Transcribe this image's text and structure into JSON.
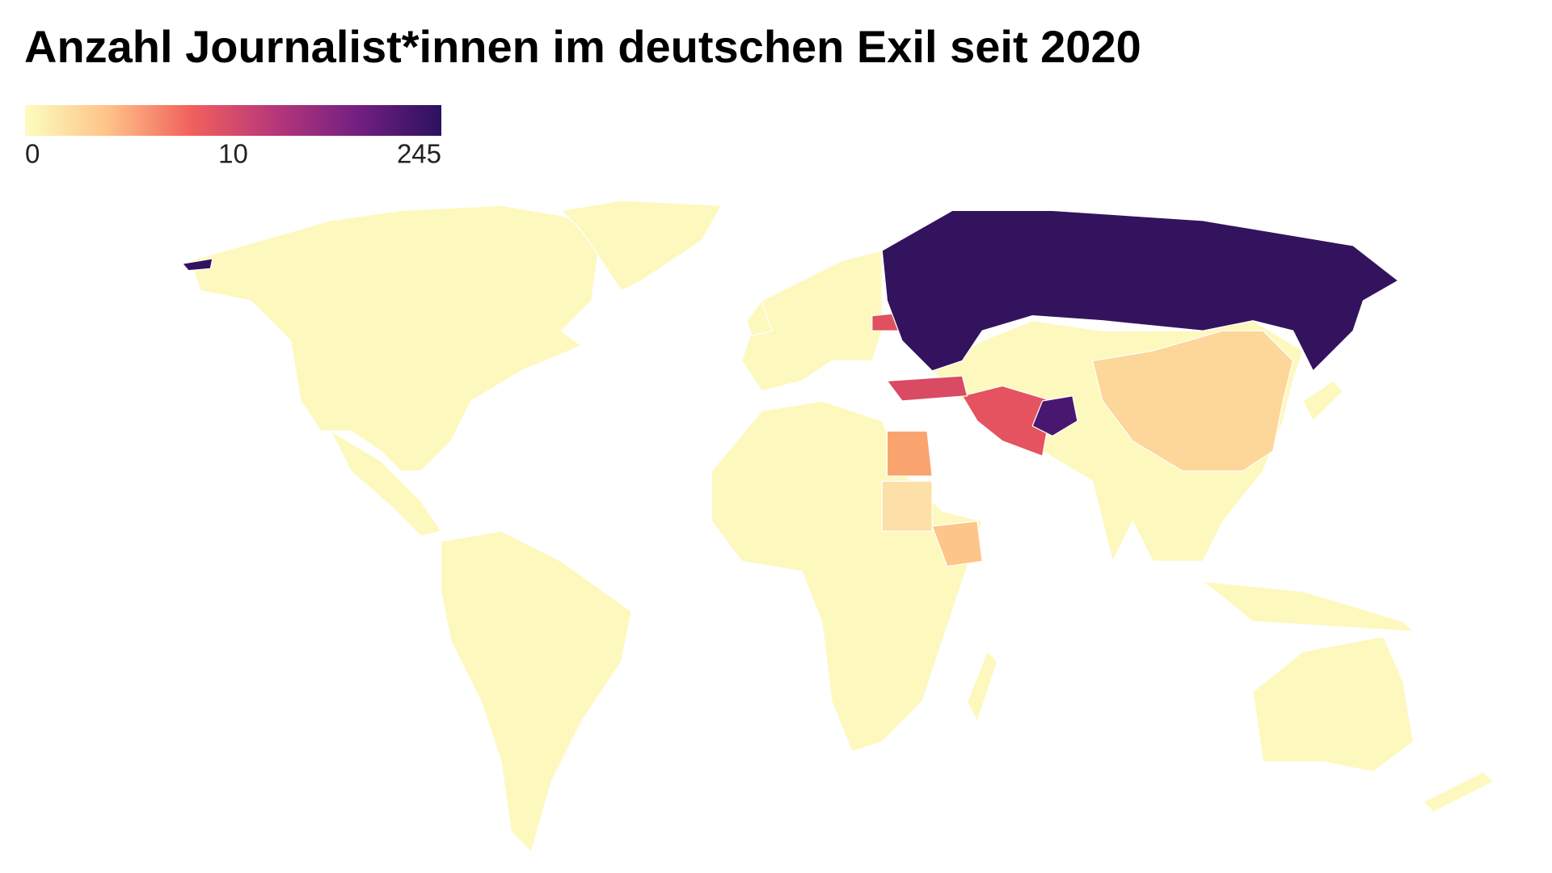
{
  "title": "Anzahl Journalist*innen im deutschen Exil seit 2020",
  "legend": {
    "ticks": [
      0,
      10,
      245
    ],
    "colorscale": [
      "#fcfdbf",
      "#fec287",
      "#f1605d",
      "#b73779",
      "#721f81",
      "#2c115f"
    ]
  }
}
